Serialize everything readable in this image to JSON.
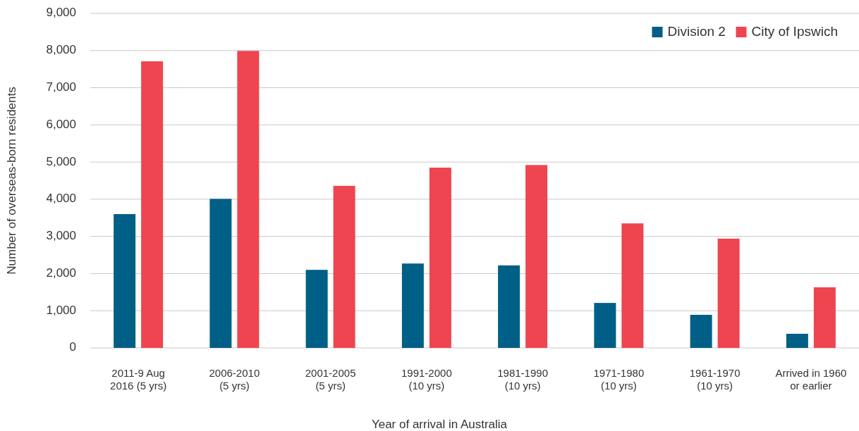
{
  "chart_data": {
    "type": "bar",
    "xlabel": "Year of arrival in Australia",
    "ylabel": "Number of overseas-born residents",
    "categories": [
      "2011-9 Aug\n2016 (5 yrs)",
      "2006-2010\n(5 yrs)",
      "2001-2005\n(5 yrs)",
      "1991-2000\n(10 yrs)",
      "1981-1990\n(10 yrs)",
      "1971-1980\n(10 yrs)",
      "1961-1970\n(10 yrs)",
      "Arrived in 1960\nor earlier"
    ],
    "series": [
      {
        "name": "Division 2",
        "color": "#005f86",
        "values": [
          3600,
          4010,
          2100,
          2270,
          2220,
          1210,
          890,
          380
        ]
      },
      {
        "name": "City of Ipswich",
        "color": "#ef4550",
        "values": [
          7710,
          7990,
          4360,
          4850,
          4920,
          3350,
          2940,
          1630
        ]
      }
    ],
    "ylim": [
      0,
      9000
    ],
    "yticks": [
      {
        "value": 0,
        "label": "0"
      },
      {
        "value": 1000,
        "label": "1,000"
      },
      {
        "value": 2000,
        "label": "2,000"
      },
      {
        "value": 3000,
        "label": "3,000"
      },
      {
        "value": 4000,
        "label": "4,000"
      },
      {
        "value": 5000,
        "label": "5,000"
      },
      {
        "value": 6000,
        "label": "6,000"
      },
      {
        "value": 7000,
        "label": "7,000"
      },
      {
        "value": 8000,
        "label": "8,000"
      },
      {
        "value": 9000,
        "label": "9,000"
      }
    ],
    "grid": "y",
    "legend": "top right"
  }
}
